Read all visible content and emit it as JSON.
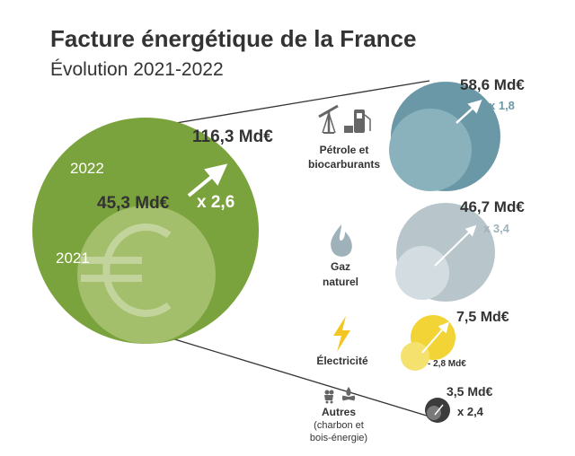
{
  "title": "Facture énergétique de la France",
  "subtitle": "Évolution 2021-2022",
  "colors": {
    "total_2022": "#7ba33d",
    "total_2021": "#a3bf6c",
    "petrole_2022": "#6b98a6",
    "petrole_2021": "#8ab2bd",
    "gaz_2022": "#b8c6cc",
    "gaz_2021": "#d3dde1",
    "elec_2022": "#f3d436",
    "elec_2021": "#f5e16e",
    "autres_2022": "#3c3c3c",
    "autres_2021": "#7a7a7a",
    "text_dark": "#333333",
    "multiplier_blue": "#6b98a6"
  },
  "chart_data": {
    "type": "bubble",
    "unit": "Md€",
    "total": {
      "label_2022": "2022",
      "label_2021": "2021",
      "value_2022": 116.3,
      "value_2021": 45.3,
      "value_2022_label": "116,3 Md€",
      "value_2021_label": "45,3 Md€",
      "multiplier": "x 2,6",
      "icon": "euro-icon"
    },
    "categories": [
      {
        "key": "petrole",
        "name_lines": [
          "Pétrole et",
          "biocarburants"
        ],
        "icon": "oil-pump-fuel-icon",
        "value_2022": 58.6,
        "value_2022_label": "58,6 Md€",
        "multiplier": "x 1,8"
      },
      {
        "key": "gaz",
        "name_lines": [
          "Gaz",
          "naturel"
        ],
        "icon": "flame-icon",
        "value_2022": 46.7,
        "value_2022_label": "46,7 Md€",
        "multiplier": "x 3,4"
      },
      {
        "key": "elec",
        "name_lines": [
          "Électricité"
        ],
        "icon": "lightning-icon",
        "value_2022": 7.5,
        "value_2022_label": "7,5 Md€",
        "value_2021_label": "- 2,8 Md€"
      },
      {
        "key": "autres",
        "name_lines": [
          "Autres",
          "(charbon et",
          "bois-énergie)"
        ],
        "icon": "coal-wood-icon",
        "value_2022": 3.5,
        "value_2022_label": "3,5 Md€",
        "multiplier": "x 2,4"
      }
    ]
  }
}
